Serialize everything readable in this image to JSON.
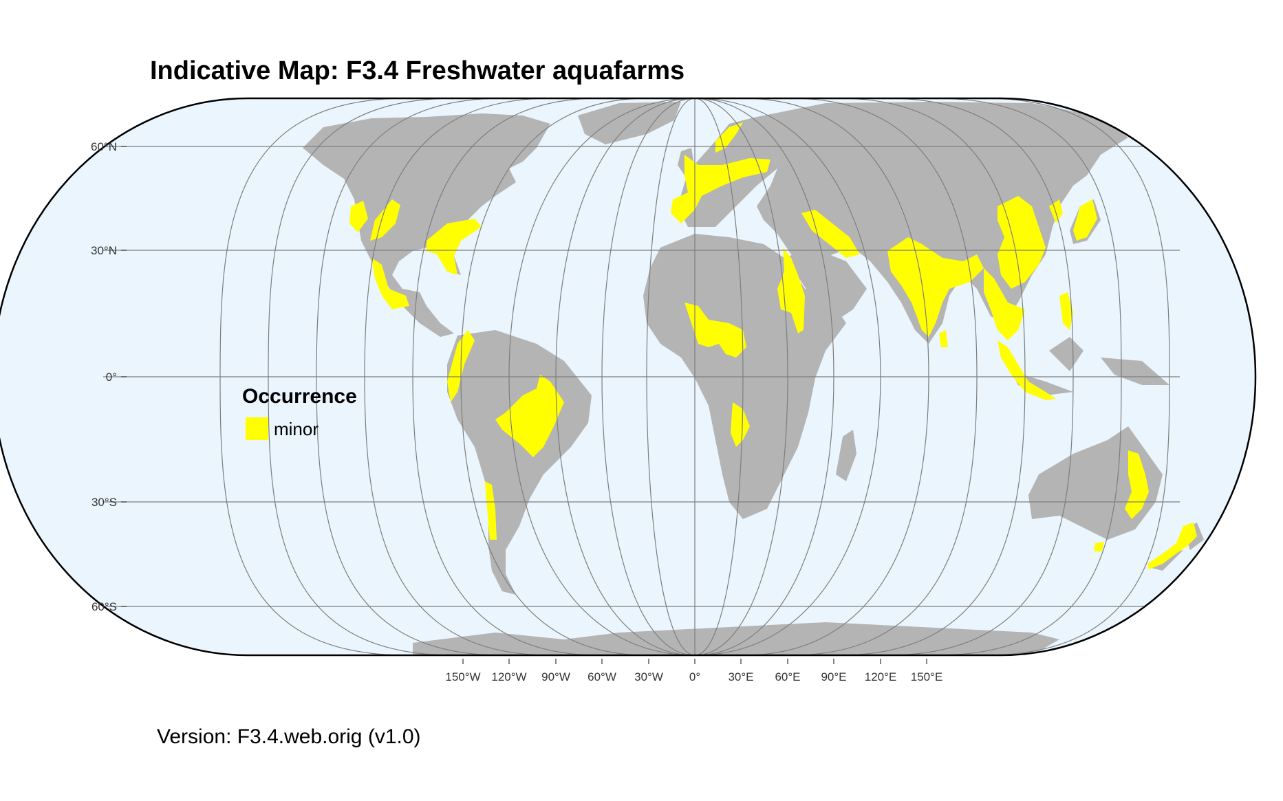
{
  "title": "Indicative Map: F3.4 Freshwater aquafarms",
  "footer": "Version: F3.4.web.orig (v1.0)",
  "colors": {
    "ocean": "#eaf5fd",
    "land": "#b4b4b4",
    "occurrence_minor": "#ffff00",
    "graticule": "#7d7d7d",
    "outline": "#000000"
  },
  "latitude_labels": [
    "60°N",
    "30°N",
    "0°",
    "30°S",
    "60°S"
  ],
  "longitude_labels": [
    "150°W",
    "120°W",
    "90°W",
    "60°W",
    "30°W",
    "0°",
    "30°E",
    "60°E",
    "90°E",
    "120°E",
    "150°E"
  ],
  "legend": {
    "title": "Occurrence",
    "items": [
      {
        "label": "minor",
        "color": "#ffff00"
      }
    ]
  }
}
